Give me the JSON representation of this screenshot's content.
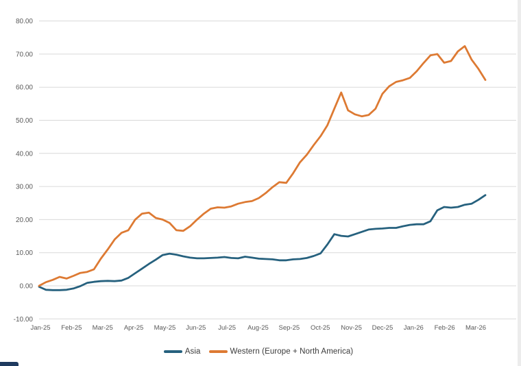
{
  "chart_data": {
    "type": "line",
    "title": "",
    "xlabel": "",
    "ylabel": "",
    "ylim": [
      -10,
      80
    ],
    "grid": "horizontal",
    "legend_position": "bottom",
    "x_unit": "weekly points, Jan-2025 through Mar-2026",
    "x_labels": [
      "Jan-25",
      "Feb-25",
      "Mar-25",
      "Apr-25",
      "May-25",
      "Jun-25",
      "Jul-25",
      "Aug-25",
      "Sep-25",
      "Oct-25",
      "Nov-25",
      "Dec-25",
      "Jan-26",
      "Feb-26",
      "Mar-26"
    ],
    "y_tick_labels": [
      "80.00",
      "70.00",
      "60.00",
      "50.00",
      "40.00",
      "30.00",
      "20.00",
      "10.00",
      "0.00",
      "-10.00"
    ],
    "series": [
      {
        "name": "Asia",
        "color": "#26617e",
        "values": [
          -0.3,
          -1.2,
          -1.3,
          -1.3,
          -1.2,
          -0.8,
          -0.1,
          0.9,
          1.2,
          1.4,
          1.5,
          1.4,
          1.6,
          2.4,
          3.8,
          5.2,
          6.6,
          7.9,
          9.3,
          9.7,
          9.4,
          8.9,
          8.5,
          8.3,
          8.3,
          8.4,
          8.5,
          8.7,
          8.4,
          8.3,
          8.8,
          8.5,
          8.2,
          8.1,
          8.0,
          7.7,
          7.7,
          8.0,
          8.1,
          8.4,
          9.0,
          9.8,
          12.5,
          15.6,
          15.1,
          14.9,
          15.6,
          16.3,
          17.0,
          17.2,
          17.3,
          17.5,
          17.5,
          18.0,
          18.4,
          18.6,
          18.6,
          19.5,
          22.8,
          23.8,
          23.6,
          23.8,
          24.5,
          24.8,
          26.0,
          27.4
        ]
      },
      {
        "name": "Western (Europe + North America)",
        "color": "#dd7a33",
        "values": [
          0.0,
          1.1,
          1.8,
          2.7,
          2.2,
          3.0,
          3.9,
          4.2,
          5.0,
          8.2,
          11.0,
          14.0,
          16.0,
          16.8,
          20.0,
          21.8,
          22.1,
          20.5,
          20.0,
          19.0,
          16.8,
          16.6,
          18.0,
          20.0,
          21.8,
          23.3,
          23.7,
          23.6,
          24.0,
          24.8,
          25.3,
          25.6,
          26.5,
          28.0,
          29.8,
          31.3,
          31.1,
          34.0,
          37.3,
          39.6,
          42.5,
          45.2,
          48.5,
          53.5,
          58.4,
          53.0,
          51.8,
          51.2,
          51.6,
          53.5,
          58.0,
          60.3,
          61.6,
          62.1,
          62.8,
          64.8,
          67.3,
          69.6,
          70.0,
          67.4,
          67.9,
          70.8,
          72.4,
          68.3,
          65.5,
          62.2
        ]
      }
    ],
    "axis_text_color": "#595959",
    "gridline_color": "#d9d9d9"
  },
  "artifacts": {
    "bottom_left_fragment_color": "#1f3a5f",
    "right_edge_color": "#ececec"
  }
}
